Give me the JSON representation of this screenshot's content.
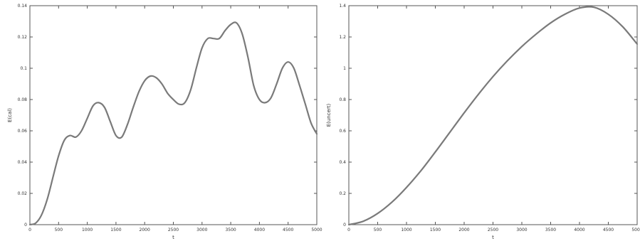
{
  "chart_data": [
    {
      "type": "line",
      "title": "",
      "xlabel": "t",
      "ylabel": "E(cal)",
      "xlim": [
        0,
        5000
      ],
      "ylim": [
        0,
        0.14
      ],
      "xticks": [
        0,
        500,
        1000,
        1500,
        2000,
        2500,
        3000,
        3500,
        4000,
        4500,
        5000
      ],
      "xtick_labels": [
        "0",
        "500",
        "1000",
        "1500",
        "2000",
        "2500",
        "3000",
        "3500",
        "4000",
        "4500",
        "5000"
      ],
      "yticks": [
        0,
        0.02,
        0.04,
        0.06,
        0.08,
        0.1,
        0.12,
        0.14
      ],
      "ytick_labels": [
        "0",
        "0.02",
        "0.04",
        "0.06",
        "0.08",
        "0.1",
        "0.12",
        "0.14"
      ],
      "grid": false,
      "series": [
        {
          "color": "#7a7a7a",
          "x": [
            0,
            100,
            200,
            300,
            400,
            500,
            600,
            700,
            800,
            900,
            1000,
            1100,
            1200,
            1300,
            1400,
            1500,
            1600,
            1700,
            1800,
            1900,
            2000,
            2100,
            2200,
            2300,
            2400,
            2500,
            2600,
            2700,
            2800,
            2900,
            3000,
            3100,
            3200,
            3300,
            3400,
            3500,
            3600,
            3700,
            3800,
            3900,
            4000,
            4100,
            4200,
            4300,
            4400,
            4500,
            4600,
            4700,
            4800,
            4900,
            5000
          ],
          "y": [
            0,
            0.001,
            0.006,
            0.016,
            0.03,
            0.044,
            0.054,
            0.057,
            0.056,
            0.06,
            0.068,
            0.076,
            0.078,
            0.075,
            0.066,
            0.057,
            0.056,
            0.064,
            0.075,
            0.085,
            0.092,
            0.095,
            0.094,
            0.09,
            0.084,
            0.08,
            0.077,
            0.078,
            0.086,
            0.1,
            0.113,
            0.119,
            0.119,
            0.119,
            0.124,
            0.128,
            0.129,
            0.122,
            0.107,
            0.089,
            0.08,
            0.078,
            0.081,
            0.09,
            0.1,
            0.104,
            0.1,
            0.089,
            0.077,
            0.065,
            0.058
          ]
        }
      ]
    },
    {
      "type": "line",
      "title": "",
      "xlabel": "t",
      "ylabel": "E(uncert)",
      "xlim": [
        0,
        5000
      ],
      "ylim": [
        0,
        1.4
      ],
      "xticks": [
        0,
        500,
        1000,
        1500,
        2000,
        2500,
        3000,
        3500,
        4000,
        4500,
        5000
      ],
      "xtick_labels": [
        "0",
        "500",
        "1000",
        "1500",
        "2000",
        "2500",
        "3000",
        "3500",
        "4000",
        "4500",
        "5000"
      ],
      "yticks": [
        0,
        0.2,
        0.4,
        0.6,
        0.8,
        1,
        1.2,
        1.4
      ],
      "ytick_labels": [
        "0",
        "0.2",
        "0.4",
        "0.6",
        "0.8",
        "1",
        "1.2",
        "1.4"
      ],
      "grid": false,
      "series": [
        {
          "color": "#7a7a7a",
          "x": [
            0,
            250,
            500,
            750,
            1000,
            1250,
            1500,
            1750,
            2000,
            2250,
            2500,
            2750,
            3000,
            3250,
            3500,
            3750,
            4000,
            4250,
            4500,
            4750,
            5000
          ],
          "y": [
            0,
            0.022,
            0.072,
            0.145,
            0.238,
            0.345,
            0.465,
            0.59,
            0.715,
            0.835,
            0.947,
            1.048,
            1.139,
            1.219,
            1.29,
            1.346,
            1.385,
            1.39,
            1.345,
            1.265,
            1.155
          ]
        }
      ]
    }
  ]
}
